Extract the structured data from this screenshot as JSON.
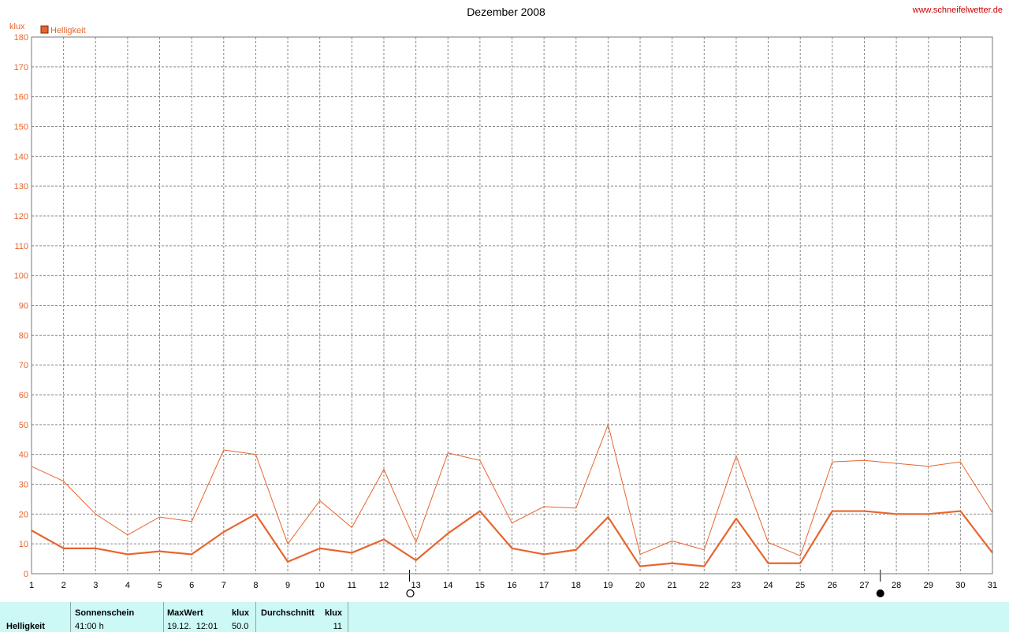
{
  "site": "www.schneifelwetter.de",
  "chart_data": {
    "type": "line",
    "title": "Dezember 2008",
    "ylabel": "klux",
    "ylim": [
      0,
      180
    ],
    "yticks": [
      0,
      10,
      20,
      30,
      40,
      50,
      60,
      70,
      80,
      90,
      100,
      110,
      120,
      130,
      140,
      150,
      160,
      170,
      180
    ],
    "x": [
      1,
      2,
      3,
      4,
      5,
      6,
      7,
      8,
      9,
      10,
      11,
      12,
      13,
      14,
      15,
      16,
      17,
      18,
      19,
      20,
      21,
      22,
      23,
      24,
      25,
      26,
      27,
      28,
      29,
      30,
      31
    ],
    "legend": "Helligkeit",
    "color": "#e8652e",
    "series": [
      {
        "role": "max",
        "values": [
          36,
          31,
          20,
          13,
          19,
          17.5,
          41.5,
          40,
          10,
          24.5,
          15.5,
          35,
          10.5,
          40.5,
          38,
          17,
          22.5,
          22,
          50,
          6.5,
          11,
          8,
          39.5,
          10.5,
          6,
          37.5,
          38,
          37,
          36,
          37.5,
          20.5
        ]
      },
      {
        "role": "mean",
        "values": [
          14.5,
          8.5,
          8.5,
          6.5,
          7.5,
          6.5,
          14,
          20,
          4,
          8.5,
          7,
          11.5,
          4.5,
          13.5,
          21,
          8.5,
          6.5,
          8,
          19,
          2.5,
          3.5,
          2.5,
          18.5,
          3.5,
          3.5,
          21,
          21,
          20,
          20,
          21,
          7
        ]
      }
    ],
    "moon": {
      "full_moon_day": 12.8,
      "new_moon_day": 27.5
    }
  },
  "footer": {
    "row_label": "Helligkeit",
    "sunshine_header": "Sonnenschein",
    "sunshine_value": "41:00 h",
    "max_header": "MaxWert",
    "max_unit": "klux",
    "max_date": "19.12.  12:01",
    "max_value": "50.0",
    "avg_header": "Durchschnitt",
    "avg_unit": "klux",
    "avg_value": "11"
  }
}
